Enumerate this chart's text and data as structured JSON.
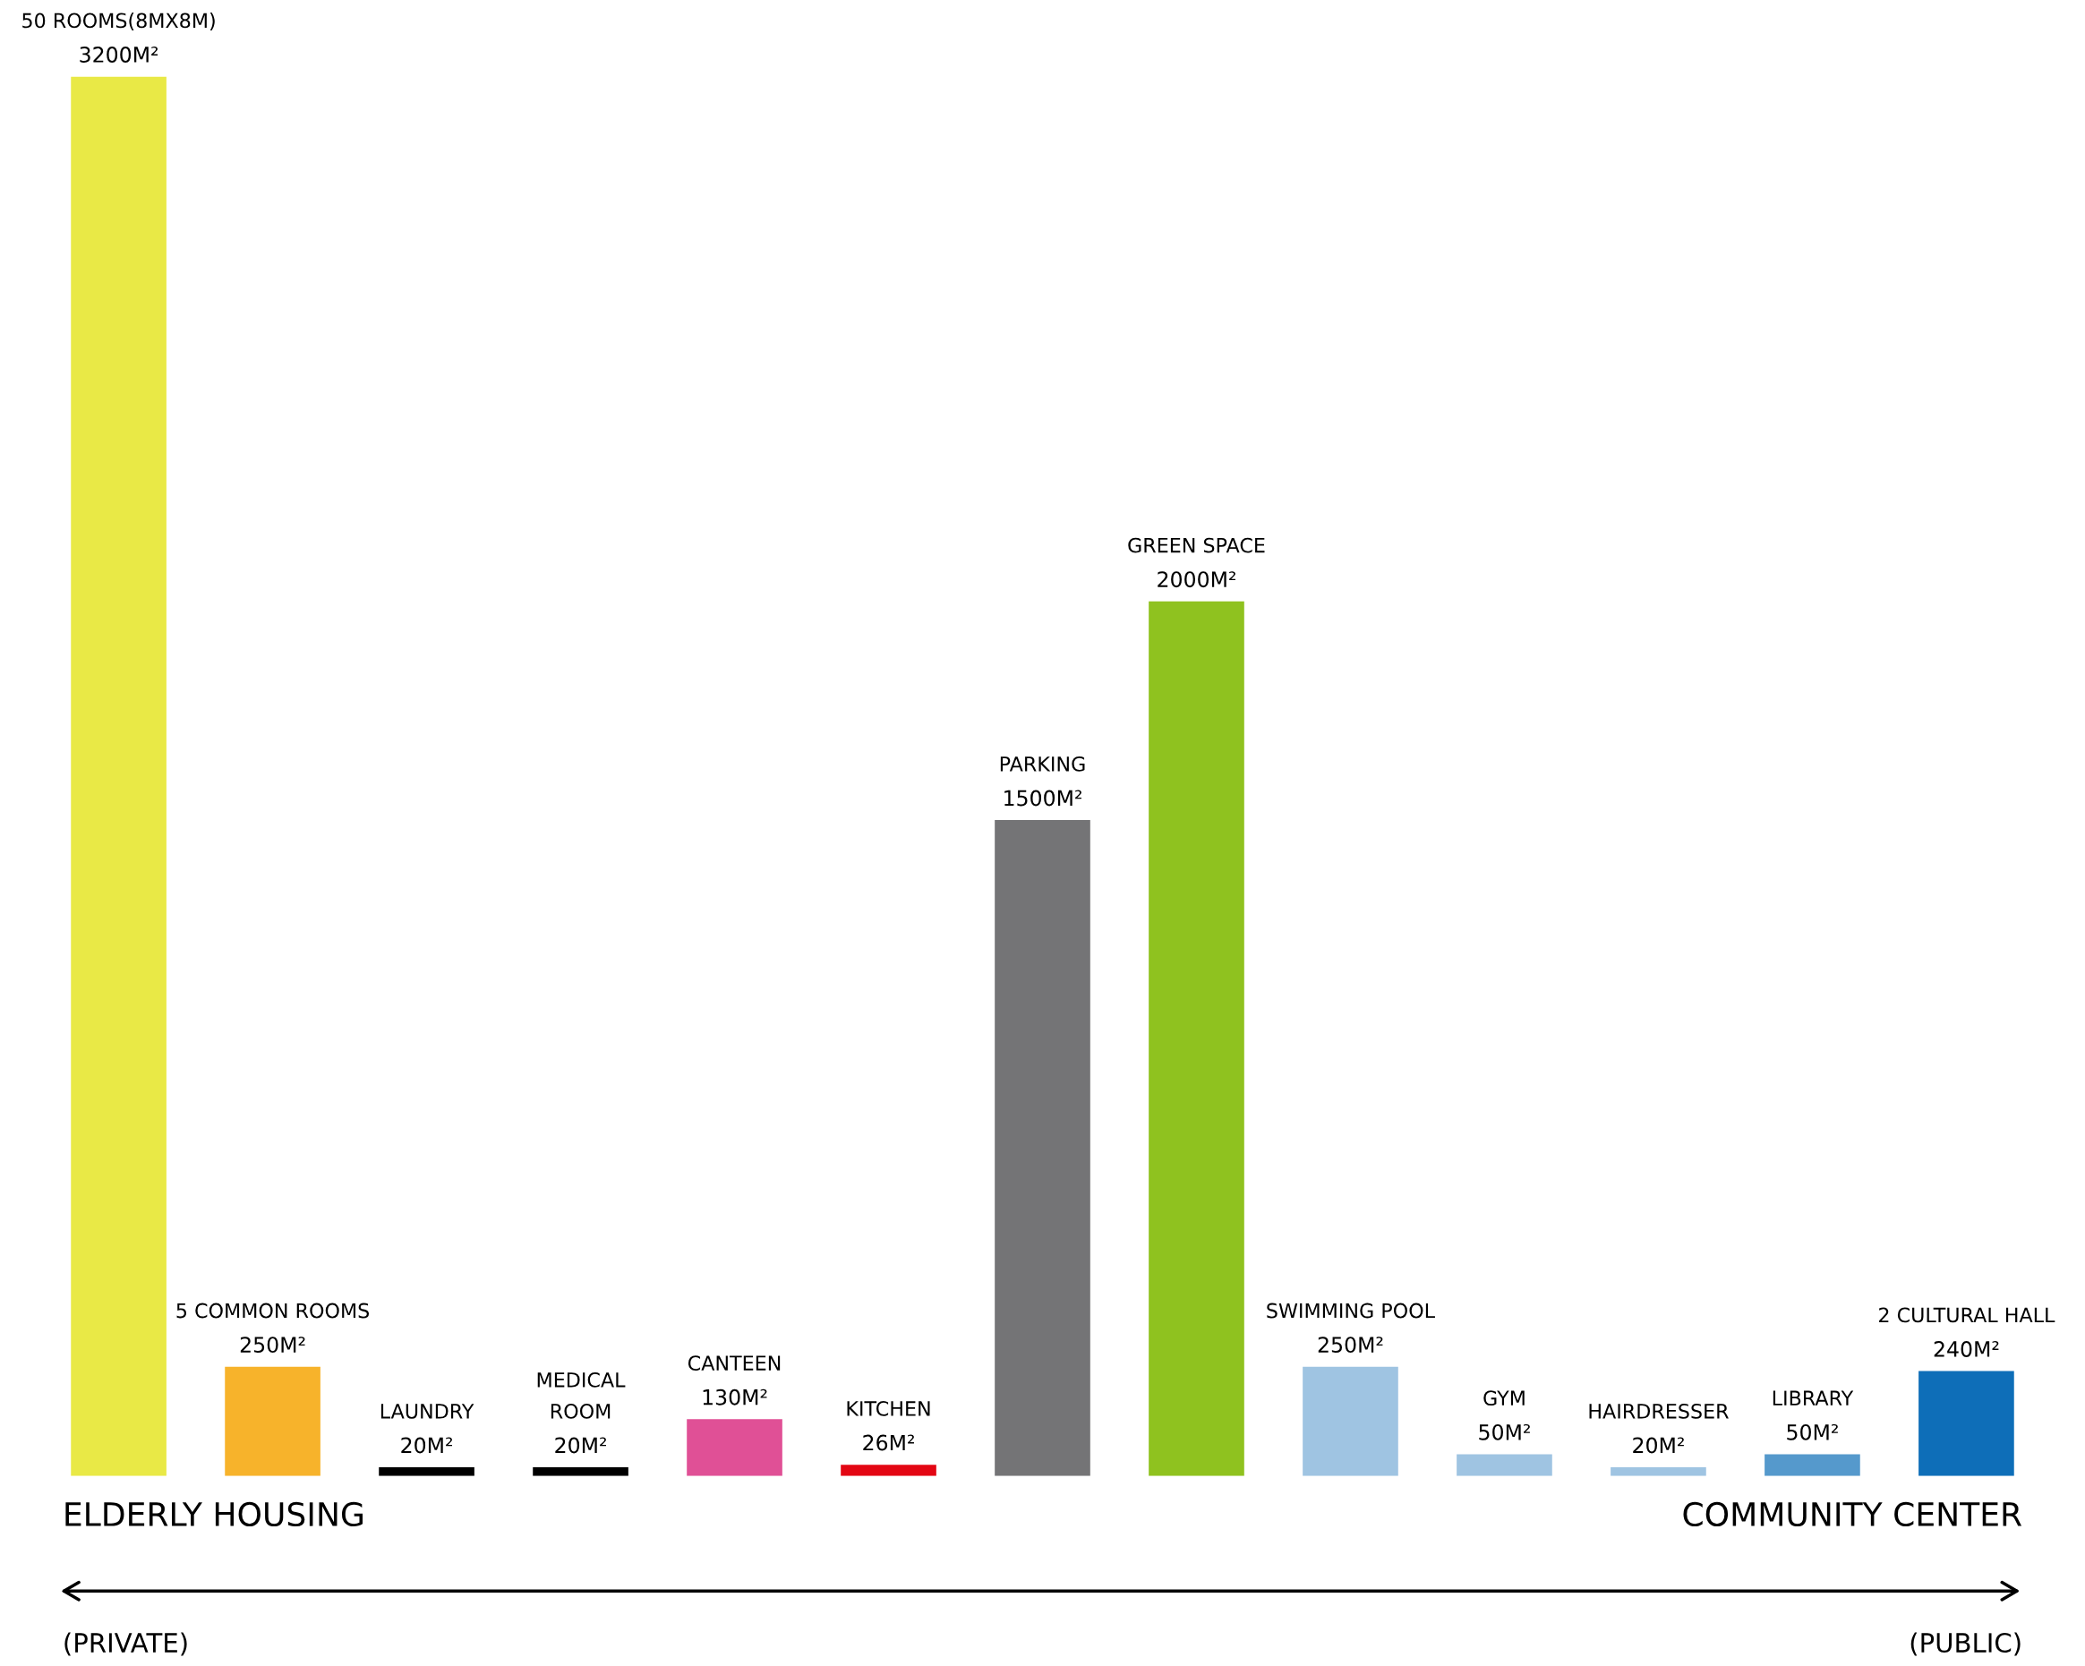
{
  "chart_data": {
    "type": "bar",
    "categories": [
      "50 ROOMS(8MX8M)",
      "5 COMMON ROOMS",
      "LAUNDRY",
      "MEDICAL\nROOM",
      "CANTEEN",
      "KITCHEN",
      "PARKING",
      "GREEN SPACE",
      "SWIMMING POOL",
      "GYM",
      "HAIRDRESSER",
      "LIBRARY",
      "2 CULTURAL HALL"
    ],
    "values": [
      3200,
      250,
      20,
      20,
      130,
      26,
      1500,
      2000,
      250,
      50,
      20,
      50,
      240
    ],
    "value_labels": [
      "3200M²",
      "250M²",
      "20M²",
      "20M²",
      "130M²",
      "26M²",
      "1500M²",
      "2000M²",
      "250M²",
      "50M²",
      "20M²",
      "50M²",
      "240M²"
    ],
    "colors": [
      "#e9e946",
      "#f7b32b",
      "#000000",
      "#000000",
      "#e05096",
      "#e30613",
      "#747476",
      "#8fc21f",
      "#9fc4e2",
      "#9fc4e2",
      "#9fc4e2",
      "#5599cc",
      "#0e6eb8"
    ],
    "ylim": [
      0,
      3200
    ],
    "annotations": [
      "ELDERLY HOUSING",
      "COMMUNITY CENTER",
      "(PRIVATE)",
      "(PUBLIC)"
    ]
  }
}
